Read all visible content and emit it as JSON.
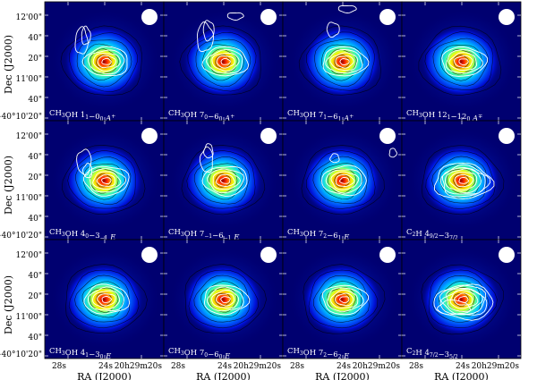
{
  "figure": {
    "y_axis_label": "Dec (J2000)",
    "x_axis_label": "RA (J2000)",
    "y_ticks": [
      "12'00\"",
      "40\"",
      "20\"",
      "11'00\"",
      "40\"",
      "+40°10'20\""
    ],
    "x_ticks": [
      "28s",
      "24s",
      "20h29m20s"
    ],
    "colors": {
      "frame": "#000000",
      "contour_color": "#ffffff",
      "beam_color": "#ffffff"
    },
    "panels": [
      {
        "species": "CH",
        "sub": "3",
        "rest": "OH 1",
        "trans_sub": "1",
        "trans_mid": "−0",
        "trans_sub2": "0",
        "sym": "A",
        "sup": "+",
        "label": "CH3OH 11−00 A+"
      },
      {
        "species": "CH",
        "sub": "3",
        "rest": "OH 7",
        "trans_sub": "0",
        "trans_mid": "−6",
        "trans_sub2": "0",
        "sym": "A",
        "sup": "+",
        "label": "CH3OH 70−60 A+"
      },
      {
        "species": "CH",
        "sub": "3",
        "rest": "OH 7",
        "trans_sub": "1",
        "trans_mid": "−6",
        "trans_sub2": "1",
        "sym": "A",
        "sup": "+",
        "label": "CH3OH 71−61 A+"
      },
      {
        "species": "CH",
        "sub": "3",
        "rest": "OH 12",
        "trans_sub": "1",
        "trans_mid": "−12",
        "trans_sub2": "0",
        "sym": "A",
        "sup": "∓",
        "label": "CH3OH 121−120 A∓"
      },
      {
        "species": "CH",
        "sub": "3",
        "rest": "OH 4",
        "trans_sub": "0",
        "trans_mid": "−3",
        "trans_sub2": "−1",
        "sym": "E",
        "sup": "",
        "label": "CH3OH 40−3−1 E"
      },
      {
        "species": "CH",
        "sub": "3",
        "rest": "OH 7",
        "trans_sub": "−1",
        "trans_mid": "−6",
        "trans_sub2": "−1",
        "sym": "E",
        "sup": "",
        "label": "CH3OH 7−1−6−1 E"
      },
      {
        "species": "CH",
        "sub": "3",
        "rest": "OH 7",
        "trans_sub": "2",
        "trans_mid": "−6",
        "trans_sub2": "1",
        "sym": "E",
        "sup": "",
        "label": "CH3OH 72−61 E"
      },
      {
        "species": "C",
        "sub": "2",
        "rest": "H 4",
        "trans_sub": "9/2",
        "trans_mid": "−3",
        "trans_sub2": "7/2",
        "sym": "",
        "sup": "",
        "label": "C2H 49/2−37/2"
      },
      {
        "species": "CH",
        "sub": "3",
        "rest": "OH 4",
        "trans_sub": "1",
        "trans_mid": "−3",
        "trans_sub2": "0",
        "sym": "E",
        "sup": "",
        "label": "CH3OH 41−30 E"
      },
      {
        "species": "CH",
        "sub": "3",
        "rest": "OH 7",
        "trans_sub": "0",
        "trans_mid": "−6",
        "trans_sub2": "0",
        "sym": "E",
        "sup": "",
        "label": "CH3OH 70−60 E"
      },
      {
        "species": "CH",
        "sub": "3",
        "rest": "OH 7",
        "trans_sub": "2",
        "trans_mid": "−6",
        "trans_sub2": "2",
        "sym": "E",
        "sup": "",
        "label": "CH3OH 72−62 E"
      },
      {
        "species": "C",
        "sub": "2",
        "rest": "H 4",
        "trans_sub": "7/2",
        "trans_mid": "−3",
        "trans_sub2": "5/2",
        "sym": "",
        "sup": "",
        "label": "C2H 47/2−35/2"
      }
    ]
  }
}
